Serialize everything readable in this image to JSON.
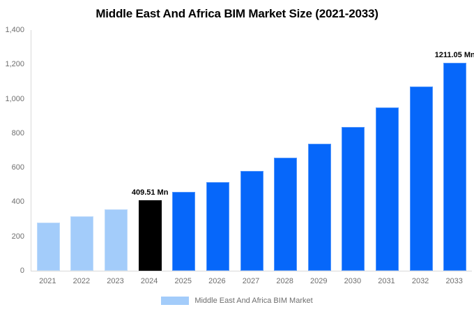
{
  "chart_data": {
    "type": "bar",
    "title": "Middle East And Africa BIM Market Size (2021-2033)",
    "unit": "Mn",
    "categories": [
      "2021",
      "2022",
      "2023",
      "2024",
      "2025",
      "2026",
      "2027",
      "2028",
      "2029",
      "2030",
      "2031",
      "2032",
      "2033"
    ],
    "values": [
      281,
      316,
      357,
      409.51,
      458,
      515,
      582,
      657,
      740,
      837,
      948,
      1070,
      1211.05
    ],
    "bar_colors": [
      "#a3ccfa",
      "#a3ccfa",
      "#a3ccfa",
      "#000000",
      "#0667fa",
      "#0667fa",
      "#0667fa",
      "#0667fa",
      "#0667fa",
      "#0667fa",
      "#0667fa",
      "#0667fa",
      "#0667fa"
    ],
    "data_labels": [
      {
        "index": 3,
        "text": "409.51 Mn"
      },
      {
        "index": 12,
        "text": "1211.05 Mn"
      }
    ],
    "ylim": [
      0,
      1400
    ],
    "y_ticks": [
      "0",
      "200",
      "400",
      "600",
      "800",
      "1,000",
      "1,200",
      "1,400"
    ],
    "grid": false,
    "xlabel": "",
    "ylabel": "",
    "axis_color": "#d9d9d9",
    "tick_color": "#6e6e6e",
    "legend": {
      "position": "bottom",
      "items": [
        {
          "label": "Middle East And Africa BIM Market",
          "color": "#a3ccfa"
        }
      ]
    }
  }
}
